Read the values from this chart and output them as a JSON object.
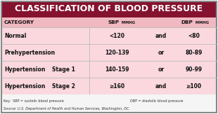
{
  "title": "Classification of Blood Pressure",
  "rows": [
    [
      "Normal",
      "<120",
      "and",
      "<80"
    ],
    [
      "Prehypertension",
      "120-139",
      "or",
      "80-89"
    ],
    [
      "Hypertension  Stage 1",
      "140-159",
      "or",
      "90-99"
    ],
    [
      "Hypertension  Stage 2",
      "≥160",
      "and",
      "≥100"
    ]
  ],
  "footer1_left": "Key:  SBP = systolic blood pressure",
  "footer1_right": "DBP = diastolic blood pressure",
  "footer2": "Source: U.S. Department of Health and Human Services, Washington, DC.",
  "title_bg": "#85122f",
  "title_fg": "#ffffff",
  "header_bg": "#f0b8c0",
  "row_bg": "#fad8de",
  "footer_bg": "#f5f5f5",
  "line_color": "#bbbbbb",
  "border_color": "#888888"
}
